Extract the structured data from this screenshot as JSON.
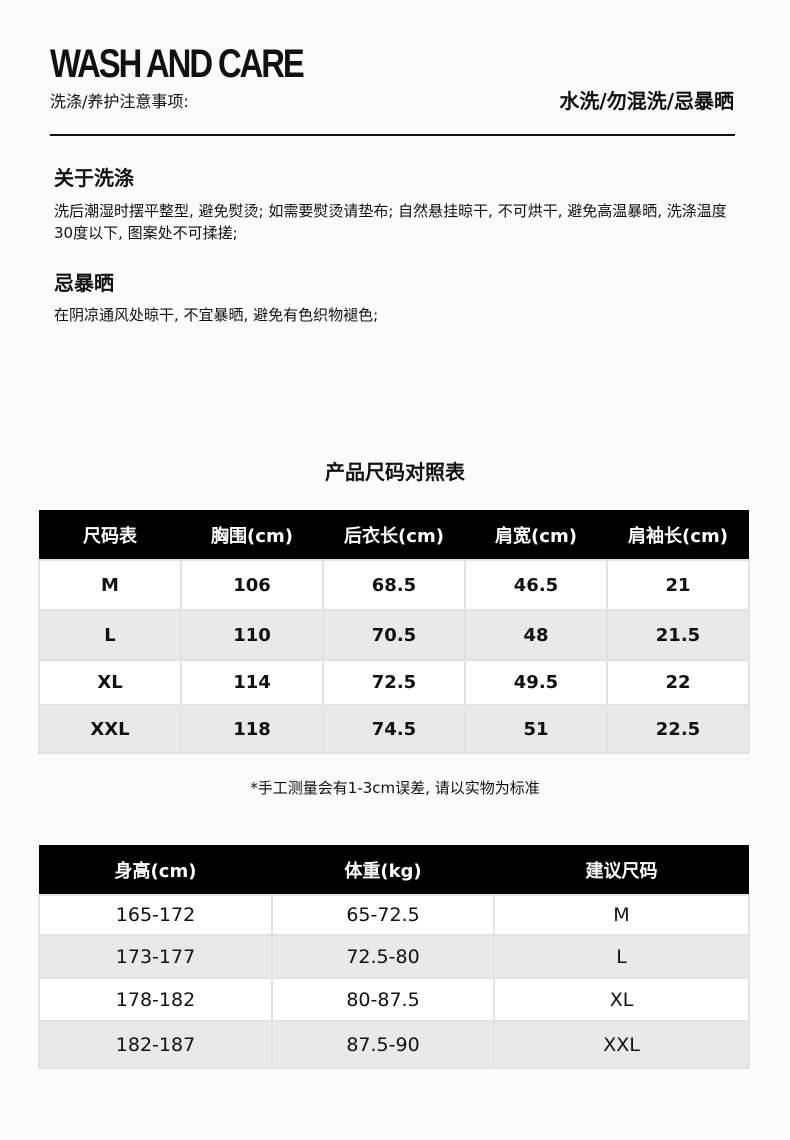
{
  "header": {
    "title": "WASH AND CARE",
    "subtitle": "洗涤/养护注意事项:",
    "right_note": "水洗/勿混洗/忌暴晒"
  },
  "sections": [
    {
      "heading": "关于洗涤",
      "text": "洗后潮湿时摆平整型, 避免熨烫; 如需要熨烫请垫布; 自然悬挂晾干, 不可烘干, 避免高温暴晒, 洗涤温度30度以下, 图案处不可揉搓;"
    },
    {
      "heading": "忌暴晒",
      "text": "在阴凉通风处晾干, 不宜暴晒, 避免有色织物褪色;"
    }
  ],
  "size_table": {
    "title": "产品尺码对照表",
    "headers": [
      "尺码表",
      "胸围(cm)",
      "后衣长(cm)",
      "肩宽(cm)",
      "肩袖长(cm)"
    ],
    "rows": [
      [
        "M",
        "106",
        "68.5",
        "46.5",
        "21"
      ],
      [
        "L",
        "110",
        "70.5",
        "48",
        "21.5"
      ],
      [
        "XL",
        "114",
        "72.5",
        "49.5",
        "22"
      ],
      [
        "XXL",
        "118",
        "74.5",
        "51",
        "22.5"
      ]
    ],
    "note": "*手工测量会有1-3cm误差, 请以实物为标准"
  },
  "recommend_table": {
    "headers": [
      "身高(cm)",
      "体重(kg)",
      "建议尺码"
    ],
    "rows": [
      [
        "165-172",
        "65-72.5",
        "M"
      ],
      [
        "173-177",
        "72.5-80",
        "L"
      ],
      [
        "178-182",
        "80-87.5",
        "XL"
      ],
      [
        "182-187",
        "87.5-90",
        "XXL"
      ]
    ]
  }
}
